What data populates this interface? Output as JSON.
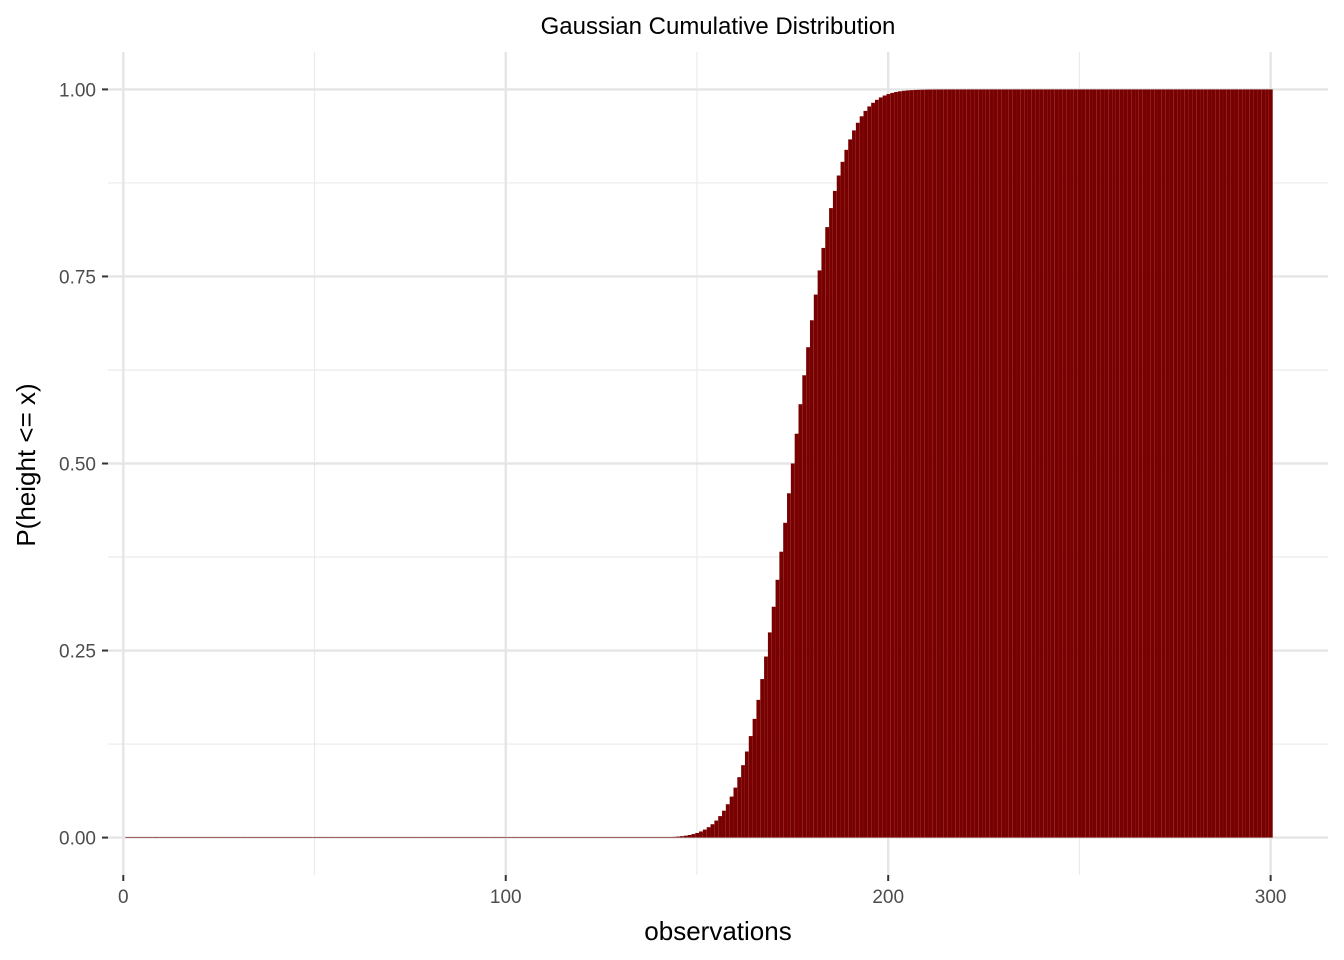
{
  "chart_data": {
    "type": "bar",
    "title": "Gaussian Cumulative Distribution",
    "xlabel": "observations",
    "ylabel": "P(height <= x)",
    "x_ticks": [
      "0",
      "100",
      "200",
      "300"
    ],
    "y_ticks": [
      "0.00",
      "0.25",
      "0.50",
      "0.75",
      "1.00"
    ],
    "xlim": [
      -4,
      315
    ],
    "ylim": [
      -0.05,
      1.05
    ],
    "grid": true,
    "legend": "none",
    "bar_color": "#780000",
    "distribution": {
      "mean": 175,
      "sd": 10
    },
    "x": [
      1,
      300
    ],
    "values": "Normal CDF with mean 175 and sd 10 evaluated at x = 1..300"
  }
}
